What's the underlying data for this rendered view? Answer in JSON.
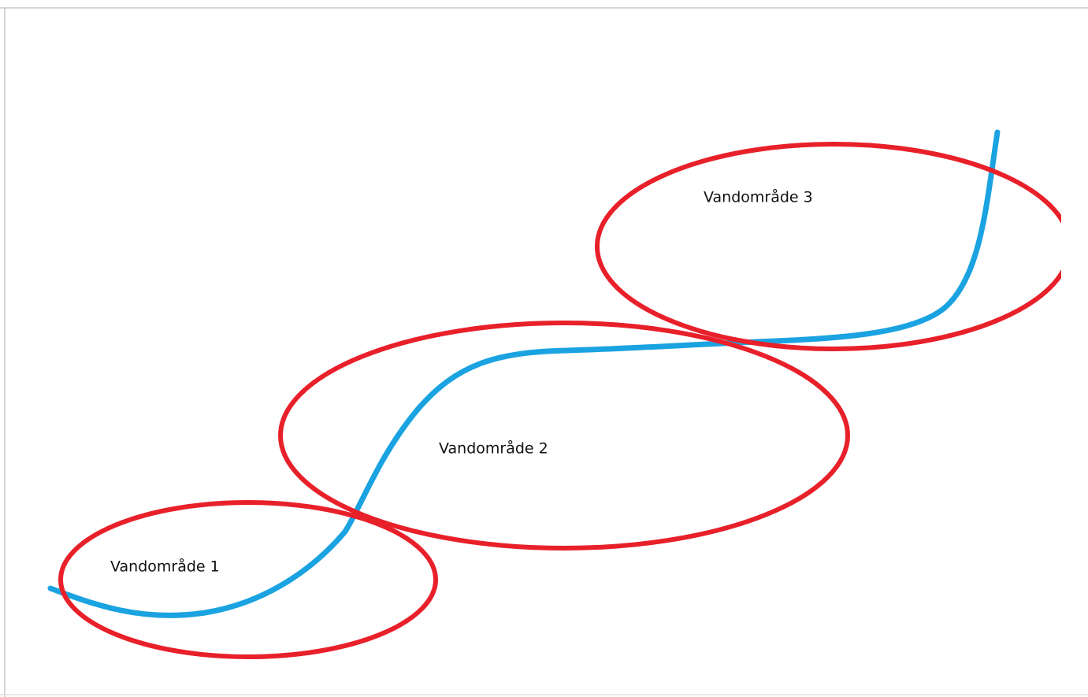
{
  "regions": [
    {
      "label": "Vandområde 1"
    },
    {
      "label": "Vandområde 2"
    },
    {
      "label": "Vandområde 3"
    }
  ]
}
